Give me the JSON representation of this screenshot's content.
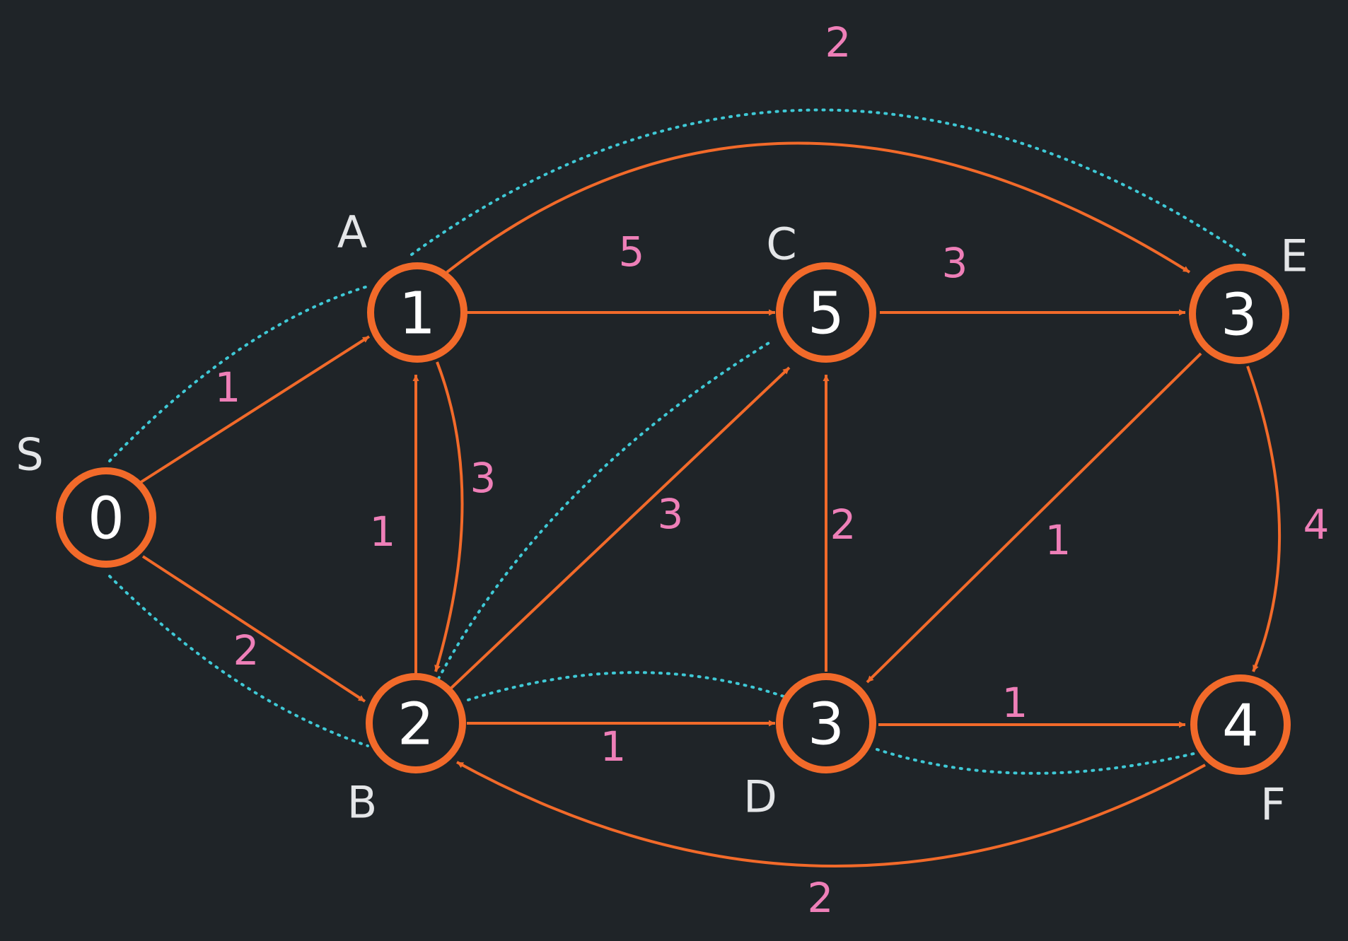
{
  "nodes": [
    {
      "id": "S",
      "label": "S",
      "distance": "0"
    },
    {
      "id": "A",
      "label": "A",
      "distance": "1"
    },
    {
      "id": "B",
      "label": "B",
      "distance": "2"
    },
    {
      "id": "C",
      "label": "C",
      "distance": "5"
    },
    {
      "id": "D",
      "label": "D",
      "distance": "3"
    },
    {
      "id": "E",
      "label": "E",
      "distance": "3"
    },
    {
      "id": "F",
      "label": "F",
      "distance": "4"
    }
  ],
  "edges": [
    {
      "from": "S",
      "to": "A",
      "weight": "1"
    },
    {
      "from": "S",
      "to": "B",
      "weight": "2"
    },
    {
      "from": "A",
      "to": "C",
      "weight": "5"
    },
    {
      "from": "A",
      "to": "E",
      "weight": "2"
    },
    {
      "from": "A",
      "to": "B",
      "weight": "3"
    },
    {
      "from": "B",
      "to": "A",
      "weight": "1"
    },
    {
      "from": "B",
      "to": "C",
      "weight": "3"
    },
    {
      "from": "B",
      "to": "D",
      "weight": "1"
    },
    {
      "from": "C",
      "to": "E",
      "weight": "3"
    },
    {
      "from": "D",
      "to": "C",
      "weight": "2"
    },
    {
      "from": "E",
      "to": "D",
      "weight": "1"
    },
    {
      "from": "E",
      "to": "F",
      "weight": "4"
    },
    {
      "from": "D",
      "to": "F",
      "weight": "1"
    },
    {
      "from": "F",
      "to": "B",
      "weight": "2"
    }
  ],
  "highlighted_paths": [
    {
      "from": "S",
      "to": "A"
    },
    {
      "from": "S",
      "to": "B"
    },
    {
      "from": "A",
      "to": "E"
    },
    {
      "from": "B",
      "to": "C"
    },
    {
      "from": "B",
      "to": "D"
    },
    {
      "from": "D",
      "to": "F"
    }
  ],
  "colors": {
    "background": "#1f2428",
    "edge": "#f26a2a",
    "node_stroke": "#f26a2a",
    "weight_text": "#ee7fb8",
    "highlight_path": "#3fc9d6",
    "node_text": "#ffffff",
    "label_text": "#e4e6e8"
  }
}
